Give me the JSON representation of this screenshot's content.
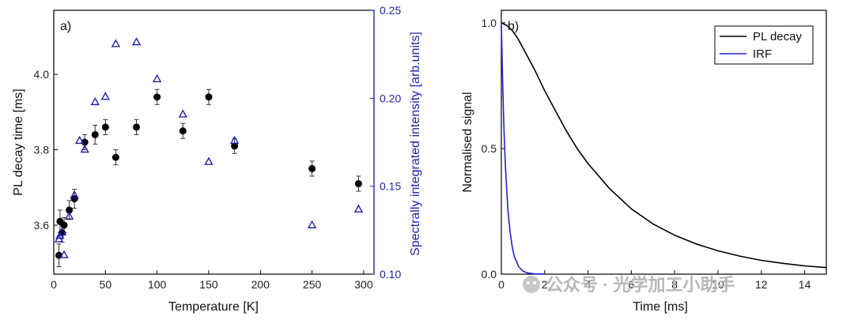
{
  "chart_data": [
    {
      "type": "scatter",
      "panel_label": "a)",
      "xlabel": "Temperature [K]",
      "ylabel": "PL decay time [ms]",
      "y2label": "Spectrally integrated intensity [arb.units]",
      "xlim": [
        0,
        310
      ],
      "ylim": [
        3.47,
        4.17
      ],
      "y2lim": [
        0.1,
        0.25
      ],
      "xticks": [
        "0",
        "50",
        "100",
        "150",
        "200",
        "250",
        "300"
      ],
      "yticks": [
        "3.6",
        "3.8",
        "4.0"
      ],
      "y2ticks": [
        "0.10",
        "0.15",
        "0.20",
        "0.25"
      ],
      "series": [
        {
          "name": "PL decay time",
          "axis": "left",
          "marker": "filled-circle",
          "color": "#000000",
          "x": [
            5,
            6,
            8,
            10,
            15,
            20,
            30,
            40,
            50,
            60,
            80,
            100,
            125,
            150,
            175,
            250,
            295
          ],
          "y": [
            3.52,
            3.61,
            3.58,
            3.6,
            3.64,
            3.67,
            3.82,
            3.84,
            3.86,
            3.78,
            3.86,
            3.94,
            3.85,
            3.94,
            3.81,
            3.75,
            3.71
          ],
          "err": [
            0.03,
            0.03,
            0.025,
            0.02,
            0.025,
            0.025,
            0.02,
            0.025,
            0.02,
            0.02,
            0.02,
            0.02,
            0.02,
            0.02,
            0.02,
            0.02,
            0.02
          ]
        },
        {
          "name": "Spectrally integrated intensity",
          "axis": "right",
          "marker": "open-triangle",
          "color": "#2222aa",
          "x": [
            5,
            6,
            8,
            10,
            15,
            20,
            25,
            30,
            40,
            50,
            60,
            80,
            100,
            125,
            150,
            175,
            250,
            295
          ],
          "y": [
            0.12,
            0.122,
            0.124,
            0.111,
            0.133,
            0.145,
            0.176,
            0.171,
            0.198,
            0.201,
            0.231,
            0.232,
            0.211,
            0.191,
            0.164,
            0.176,
            0.128,
            0.137
          ]
        }
      ]
    },
    {
      "type": "line",
      "panel_label": "b)",
      "xlabel": "Time [ms]",
      "ylabel": "Normalised signal",
      "xlim": [
        0,
        15
      ],
      "ylim": [
        0,
        1.05
      ],
      "xticks": [
        "0",
        "2",
        "4",
        "6",
        "8",
        "10",
        "12",
        "14"
      ],
      "yticks": [
        "0.0",
        "0.5",
        "1.0"
      ],
      "legend": {
        "position": "top-right",
        "entries": [
          "PL decay",
          "IRF"
        ]
      },
      "series": [
        {
          "name": "PL decay",
          "color": "#000000",
          "x": [
            0,
            0.25,
            0.5,
            0.75,
            1,
            1.5,
            2,
            2.5,
            3,
            3.5,
            4,
            5,
            6,
            7,
            8,
            9,
            10,
            11,
            12,
            13,
            14,
            15
          ],
          "y": [
            1.0,
            0.99,
            0.97,
            0.94,
            0.9,
            0.82,
            0.73,
            0.65,
            0.57,
            0.5,
            0.44,
            0.34,
            0.26,
            0.2,
            0.155,
            0.12,
            0.093,
            0.072,
            0.055,
            0.043,
            0.033,
            0.026
          ]
        },
        {
          "name": "IRF",
          "color": "#2222cc",
          "x": [
            0,
            0.05,
            0.1,
            0.15,
            0.2,
            0.3,
            0.4,
            0.5,
            0.6,
            0.8,
            1.0,
            1.2,
            1.5,
            2.0
          ],
          "y": [
            1.0,
            0.8,
            0.64,
            0.51,
            0.41,
            0.26,
            0.17,
            0.11,
            0.07,
            0.03,
            0.012,
            0.005,
            0.002,
            0.0
          ]
        }
      ]
    }
  ],
  "watermark": "公众号 · 光学加工小助手"
}
